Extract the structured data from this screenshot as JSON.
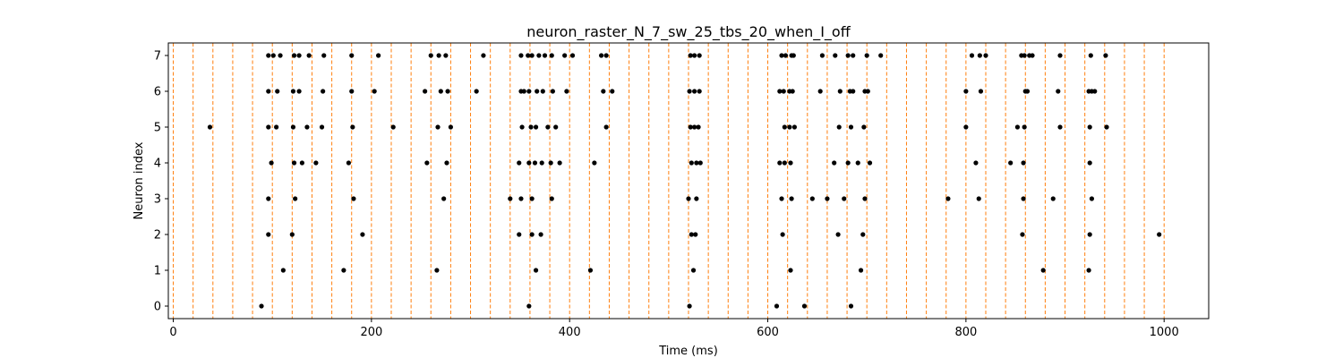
{
  "chart_data": {
    "type": "scatter",
    "title": "neuron_raster_N_7_sw_25_tbs_20_when_I_off",
    "xlabel": "Time (ms)",
    "ylabel": "Neuron index",
    "xlim": [
      -5,
      1045
    ],
    "ylim": [
      -0.35,
      7.35
    ],
    "xticks": [
      0,
      200,
      400,
      600,
      800,
      1000
    ],
    "yticks": [
      0,
      1,
      2,
      3,
      4,
      5,
      6,
      7
    ],
    "grid": false,
    "marker_color": "#000000",
    "vline_color": "#ff7f0e",
    "vline_style": "dashed",
    "vlines": [
      0,
      20,
      40,
      60,
      80,
      100,
      120,
      140,
      160,
      180,
      200,
      220,
      240,
      260,
      280,
      300,
      320,
      340,
      360,
      380,
      400,
      420,
      440,
      460,
      480,
      500,
      520,
      540,
      560,
      580,
      600,
      620,
      640,
      660,
      680,
      700,
      720,
      740,
      760,
      780,
      800,
      820,
      840,
      860,
      880,
      900,
      920,
      940,
      960,
      980,
      1000
    ],
    "spikes": [
      {
        "neuron": 0,
        "times": [
          89,
          359,
          521,
          609,
          637,
          684
        ]
      },
      {
        "neuron": 1,
        "times": [
          111,
          172,
          266,
          366,
          421,
          525,
          623,
          694,
          878,
          924
        ]
      },
      {
        "neuron": 2,
        "times": [
          96,
          120,
          191,
          349,
          362,
          371,
          523,
          527,
          615,
          671,
          696,
          857,
          925,
          995
        ]
      },
      {
        "neuron": 3,
        "times": [
          96,
          123,
          182,
          273,
          340,
          351,
          362,
          382,
          520,
          528,
          614,
          624,
          645,
          660,
          677,
          698,
          782,
          813,
          858,
          888,
          927
        ]
      },
      {
        "neuron": 4,
        "times": [
          99,
          122,
          130,
          144,
          177,
          256,
          276,
          349,
          359,
          365,
          372,
          381,
          390,
          425,
          523,
          528,
          532,
          612,
          617,
          623,
          667,
          681,
          691,
          703,
          810,
          845,
          858,
          925
        ]
      },
      {
        "neuron": 5,
        "times": [
          37,
          96,
          104,
          121,
          135,
          150,
          181,
          222,
          267,
          280,
          352,
          361,
          366,
          378,
          386,
          437,
          522,
          526,
          530,
          617,
          622,
          627,
          672,
          684,
          697,
          800,
          852,
          859,
          895,
          925,
          942
        ]
      },
      {
        "neuron": 6,
        "times": [
          96,
          105,
          121,
          127,
          151,
          180,
          203,
          254,
          270,
          277,
          306,
          351,
          354,
          359,
          367,
          373,
          383,
          397,
          434,
          443,
          521,
          526,
          531,
          612,
          616,
          622,
          625,
          653,
          673,
          683,
          686,
          698,
          701,
          800,
          815,
          860,
          862,
          893,
          924,
          927,
          930
        ]
      },
      {
        "neuron": 7,
        "times": [
          96,
          101,
          108,
          122,
          127,
          137,
          152,
          180,
          207,
          260,
          268,
          275,
          313,
          351,
          358,
          362,
          369,
          375,
          382,
          395,
          403,
          432,
          437,
          522,
          526,
          531,
          614,
          618,
          624,
          626,
          655,
          668,
          681,
          686,
          700,
          714,
          806,
          814,
          820,
          864,
          856,
          859,
          867,
          895,
          926,
          941
        ]
      }
    ]
  }
}
